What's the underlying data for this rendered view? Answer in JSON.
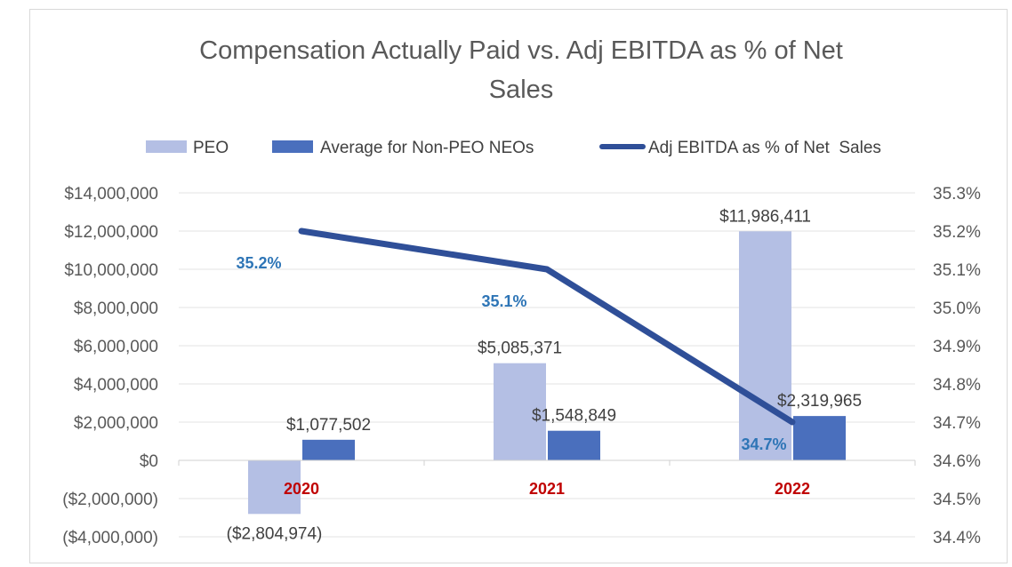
{
  "colors": {
    "peo": "#b4bfe4",
    "non_peo": "#4a6fbd",
    "line": "#2f4f98",
    "line_label": "#2e75b6",
    "category": "#c00000",
    "grid": "#e3e3e3"
  },
  "chart_data": {
    "type": "bar",
    "title_line1": "Compensation Actually Paid vs. Adj EBITDA as % of Net",
    "title_line2": "Sales",
    "categories": [
      "2020",
      "2021",
      "2022"
    ],
    "series": [
      {
        "name": "PEO",
        "values": [
          -2804974,
          5085371,
          11986411
        ],
        "labels": [
          "($2,804,974)",
          "$5,085,371",
          "$11,986,411"
        ]
      },
      {
        "name": "Average for Non-PEO NEOs",
        "values": [
          1077502,
          1548849,
          2319965
        ],
        "labels": [
          "$1,077,502",
          "$1,548,849",
          "$2,319,965"
        ]
      }
    ],
    "line_series": {
      "name": "Adj EBITDA as % of Net  Sales",
      "axis": "secondary",
      "values": [
        35.2,
        35.1,
        34.7
      ],
      "labels": [
        "35.2%",
        "35.1%",
        "34.7%"
      ]
    },
    "y_axis": {
      "min": -4000000,
      "max": 14000000,
      "step": 2000000,
      "tick_labels": [
        "($4,000,000)",
        "($2,000,000)",
        "$0",
        "$2,000,000",
        "$4,000,000",
        "$6,000,000",
        "$8,000,000",
        "$10,000,000",
        "$12,000,000",
        "$14,000,000"
      ]
    },
    "y2_axis": {
      "min": 34.4,
      "max": 35.3,
      "step": 0.1,
      "tick_labels": [
        "34.4%",
        "34.5%",
        "34.6%",
        "34.7%",
        "34.8%",
        "34.9%",
        "35.0%",
        "35.1%",
        "35.2%",
        "35.3%"
      ]
    },
    "legend": [
      "PEO",
      "Average for Non-PEO NEOs",
      "Adj EBITDA as % of Net  Sales"
    ],
    "legend_position": "top",
    "grid": true
  }
}
